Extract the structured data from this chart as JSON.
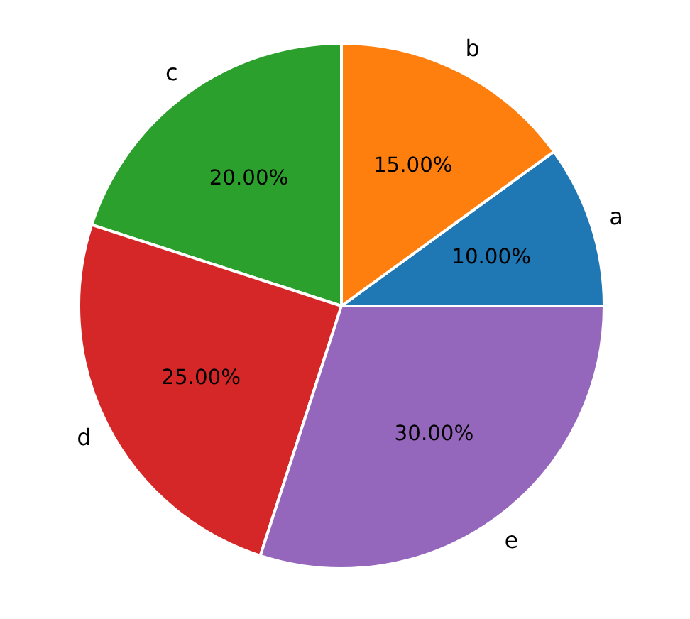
{
  "chart_data": {
    "type": "pie",
    "categories": [
      "a",
      "b",
      "c",
      "d",
      "e"
    ],
    "values": [
      10,
      15,
      20,
      25,
      30
    ],
    "colors": [
      "#1f77b4",
      "#ff7f0e",
      "#2ca02c",
      "#d62728",
      "#9467bd"
    ],
    "value_labels": [
      "10.00%",
      "15.00%",
      "20.00%",
      "25.00%",
      "30.00%"
    ]
  }
}
